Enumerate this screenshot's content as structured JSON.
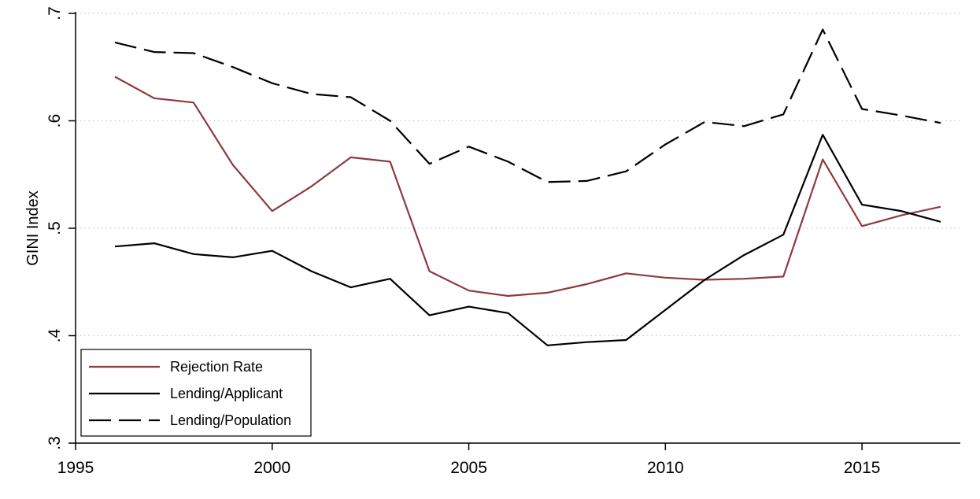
{
  "chart_data": {
    "type": "line",
    "title": "",
    "xlabel": "",
    "ylabel": "GINI Index",
    "xlim": [
      1995,
      2017.5
    ],
    "ylim": [
      0.3,
      0.7
    ],
    "xticks": [
      1995,
      2000,
      2005,
      2010,
      2015
    ],
    "xtick_labels": [
      "1995",
      "2000",
      "2005",
      "2010",
      "2015"
    ],
    "yticks": [
      0.3,
      0.4,
      0.5,
      0.6,
      0.7
    ],
    "ytick_labels": [
      ".3",
      ".4",
      ".5",
      ".6",
      ".7"
    ],
    "grid": "horizontal dotted",
    "legend_position": "bottom-left",
    "x": [
      1996,
      1997,
      1998,
      1999,
      2000,
      2001,
      2002,
      2003,
      2004,
      2005,
      2006,
      2007,
      2008,
      2009,
      2010,
      2011,
      2012,
      2013,
      2014,
      2015,
      2016,
      2017
    ],
    "series": [
      {
        "name": "Rejection Rate",
        "color": "#8c3b3e",
        "dash": "solid",
        "values": [
          0.641,
          0.621,
          0.617,
          0.559,
          0.516,
          0.539,
          0.566,
          0.562,
          0.46,
          0.442,
          0.437,
          0.44,
          0.448,
          0.458,
          0.454,
          0.452,
          0.453,
          0.455,
          0.564,
          0.502,
          0.512,
          0.52
        ]
      },
      {
        "name": "Lending/Applicant",
        "color": "#000000",
        "dash": "solid",
        "values": [
          0.483,
          0.486,
          0.476,
          0.473,
          0.479,
          0.46,
          0.445,
          0.453,
          0.419,
          0.427,
          0.421,
          0.391,
          0.394,
          0.396,
          0.424,
          0.452,
          0.475,
          0.494,
          0.587,
          0.522,
          0.516,
          0.506
        ]
      },
      {
        "name": "Lending/Population",
        "color": "#000000",
        "dash": "dashed",
        "values": [
          0.673,
          0.664,
          0.663,
          0.65,
          0.635,
          0.625,
          0.622,
          0.6,
          0.56,
          0.576,
          0.562,
          0.543,
          0.544,
          0.553,
          0.578,
          0.599,
          0.595,
          0.606,
          0.685,
          0.611,
          0.605,
          0.598
        ]
      }
    ]
  }
}
